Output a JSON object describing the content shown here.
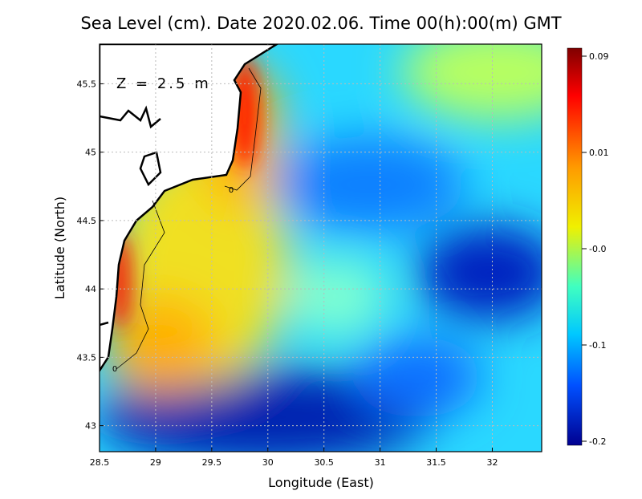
{
  "chart_data": {
    "type": "heatmap",
    "title": "Sea Level (cm). Date 2020.02.06. Time 00(h):00(m) GMT",
    "annotation": "Z = 2.5 m",
    "x_label": "Longitude (East)",
    "y_label": "Latitude (North)",
    "contour_labels": [
      "0",
      "0"
    ],
    "xlim": [
      28.5,
      32.44
    ],
    "ylim": [
      42.81,
      45.79
    ],
    "xticks": [
      28.5,
      29,
      29.5,
      30,
      30.5,
      31,
      31.5,
      32
    ],
    "yticks": [
      43,
      43.5,
      44,
      44.5,
      45,
      45.5
    ],
    "grid": true,
    "colorbar_ticks": [
      0.09,
      0.01,
      {
        "value": 0,
        "label": "-0.0"
      },
      -0.1,
      -0.2
    ]
  }
}
